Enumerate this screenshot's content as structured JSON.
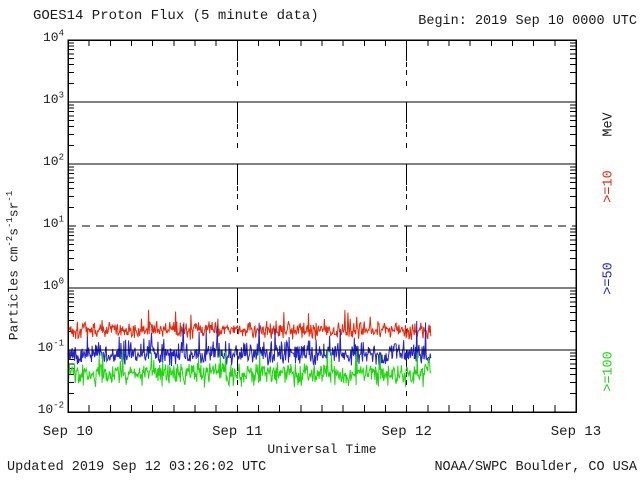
{
  "header": {
    "title": "GOES14 Proton Flux (5 minute data)",
    "begin_label": "Begin: 2019 Sep 10 0000 UTC"
  },
  "footer": {
    "updated": "Updated 2019 Sep 12 03:26:02 UTC",
    "source": "NOAA/SWPC Boulder, CO USA"
  },
  "chart_data": {
    "type": "line",
    "title": "GOES14 Proton Flux (5 minute data)",
    "xlabel": "Universal Time",
    "ylabel_segments": [
      [
        "Particles cm",
        "-2"
      ],
      [
        "s",
        "-1"
      ],
      [
        "sr",
        "-1"
      ]
    ],
    "units_label": "MeV",
    "x_ticks": [
      "Sep 10",
      "Sep 11",
      "Sep 12",
      "Sep 13"
    ],
    "axis": {
      "x_range_days": 3,
      "x_minor_tick_hours": 3,
      "y_scale": "log",
      "y_log_min": -2,
      "y_log_max": 4,
      "y_tick_exponents": [
        4,
        3,
        2,
        1,
        0,
        -1,
        -2
      ],
      "solid_line_exponents": [
        3,
        2,
        0,
        -1
      ],
      "dashed_line_exponents": [
        1
      ],
      "day_boundary_gridlines": [
        1,
        2
      ]
    },
    "cadence_minutes": 5,
    "data_start_day": 0,
    "data_end_day": 2.143,
    "series": [
      {
        "label": ">=10",
        "unit": "MeV",
        "color": "#e8280a",
        "typical_flux": 0.21,
        "approx_min": 0.13,
        "approx_max": 0.45
      },
      {
        "label": ">=50",
        "unit": "MeV",
        "color": "#2323c8",
        "typical_flux": 0.085,
        "approx_min": 0.048,
        "approx_max": 0.3
      },
      {
        "label": ">=100",
        "unit": "MeV",
        "color": "#1fd60e",
        "typical_flux": 0.042,
        "approx_min": 0.021,
        "approx_max": 0.1
      }
    ]
  }
}
